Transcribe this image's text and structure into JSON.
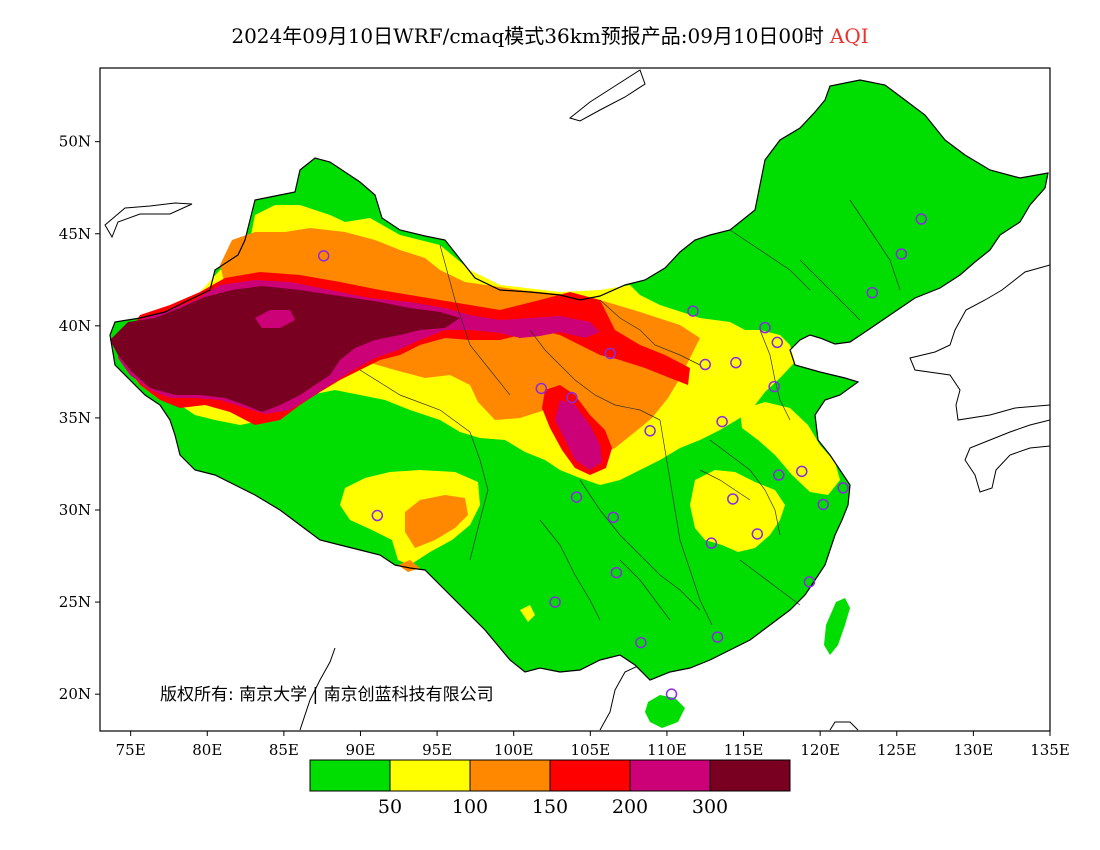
{
  "title": {
    "main": "2024年09月10日WRF/cmaq模式36km预报产品:09月10日00时",
    "variable": "AQI"
  },
  "axes": {
    "lon_ticks": [
      "75E",
      "80E",
      "85E",
      "90E",
      "95E",
      "100E",
      "105E",
      "110E",
      "115E",
      "120E",
      "125E",
      "130E",
      "135E"
    ],
    "lat_ticks": [
      "50N",
      "45N",
      "40N",
      "35N",
      "30N",
      "25N",
      "20N"
    ],
    "lon_range": [
      73,
      135
    ],
    "lat_range": [
      18,
      54
    ]
  },
  "colorbar": {
    "colors": [
      "#00dd00",
      "#ffff00",
      "#ff8800",
      "#ff0000",
      "#cc0077",
      "#7a0022"
    ],
    "labels": [
      "50",
      "100",
      "150",
      "200",
      "300"
    ]
  },
  "copyright": "版权所有: 南京大学 | 南京创蓝科技有限公司",
  "stations": [
    {
      "lon": 126.6,
      "lat": 45.8
    },
    {
      "lon": 125.3,
      "lat": 43.9
    },
    {
      "lon": 123.4,
      "lat": 41.8
    },
    {
      "lon": 87.6,
      "lat": 43.8
    },
    {
      "lon": 111.7,
      "lat": 40.8
    },
    {
      "lon": 116.4,
      "lat": 39.9
    },
    {
      "lon": 117.2,
      "lat": 39.1
    },
    {
      "lon": 114.5,
      "lat": 38.0
    },
    {
      "lon": 112.5,
      "lat": 37.9
    },
    {
      "lon": 106.3,
      "lat": 38.5
    },
    {
      "lon": 101.8,
      "lat": 36.6
    },
    {
      "lon": 103.8,
      "lat": 36.1
    },
    {
      "lon": 117.0,
      "lat": 36.7
    },
    {
      "lon": 113.6,
      "lat": 34.8
    },
    {
      "lon": 108.9,
      "lat": 34.3
    },
    {
      "lon": 118.8,
      "lat": 32.1
    },
    {
      "lon": 117.3,
      "lat": 31.9
    },
    {
      "lon": 121.5,
      "lat": 31.2
    },
    {
      "lon": 120.2,
      "lat": 30.3
    },
    {
      "lon": 114.3,
      "lat": 30.6
    },
    {
      "lon": 104.1,
      "lat": 30.7
    },
    {
      "lon": 106.5,
      "lat": 29.6
    },
    {
      "lon": 91.1,
      "lat": 29.7
    },
    {
      "lon": 112.9,
      "lat": 28.2
    },
    {
      "lon": 115.9,
      "lat": 28.7
    },
    {
      "lon": 106.7,
      "lat": 26.6
    },
    {
      "lon": 119.3,
      "lat": 26.1
    },
    {
      "lon": 102.7,
      "lat": 25.0
    },
    {
      "lon": 113.3,
      "lat": 23.1
    },
    {
      "lon": 108.3,
      "lat": 22.8
    },
    {
      "lon": 110.3,
      "lat": 20.0
    }
  ]
}
